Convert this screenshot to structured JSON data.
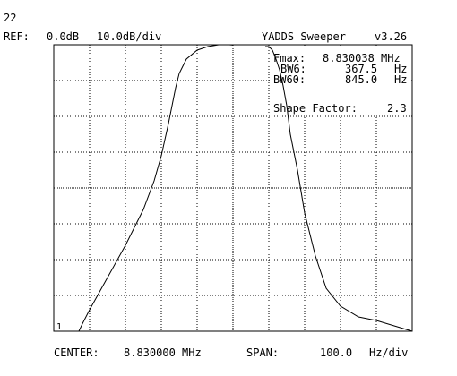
{
  "header": {
    "counter": "22",
    "ref_label": "REF:",
    "ref_value": "0.0dB",
    "scale": "10.0dB/div",
    "app_title": "YADDS Sweeper",
    "version": "v3.26"
  },
  "readout": {
    "fmax_label": "Fmax:",
    "fmax_value": "8.830038 MHz",
    "bw6_label": "BW6:",
    "bw6_value": "367.5",
    "bw6_unit": "Hz",
    "bw60_label": "BW60:",
    "bw60_value": "845.0",
    "bw60_unit": "Hz",
    "shape_label": "Shape Factor:",
    "shape_value": "2.3"
  },
  "marker_label": "1",
  "footer": {
    "center_label": "CENTER:",
    "center_value": "8.830000 MHz",
    "span_label": "SPAN:",
    "span_value": "100.0",
    "span_unit": "Hz/div"
  },
  "chart_data": {
    "type": "line",
    "title": "",
    "xlabel": "",
    "ylabel": "",
    "grid": true,
    "x_divisions": 10,
    "y_divisions": 8,
    "xlim": [
      8.8295,
      8.8305
    ],
    "ylim": [
      -80,
      0
    ],
    "x_unit": "MHz",
    "y_unit": "dB",
    "series": [
      {
        "values": [
          [
            8.8295,
            -80.0
          ],
          [
            8.82957,
            -80.0
          ],
          [
            8.82958,
            -77.9
          ],
          [
            8.8296,
            -74.0
          ],
          [
            8.82965,
            -65.0
          ],
          [
            8.8297,
            -56.0
          ],
          [
            8.82975,
            -46.0
          ],
          [
            8.82978,
            -38.0
          ],
          [
            8.8298,
            -31.0
          ],
          [
            8.82982,
            -22.0
          ],
          [
            8.82984,
            -12.0
          ],
          [
            8.82985,
            -8.0
          ],
          [
            8.82987,
            -4.0
          ],
          [
            8.8299,
            -1.5
          ],
          [
            8.82993,
            -0.5
          ],
          [
            8.82996,
            0.0
          ],
          [
            8.82999,
            0.0
          ],
          [
            8.83,
            -0.1
          ]
        ]
      },
      {
        "values": [
          [
            8.83009,
            -0.5
          ],
          [
            8.8301,
            -0.5
          ],
          [
            8.83011,
            -1.5
          ],
          [
            8.83012,
            -4.0
          ],
          [
            8.83013,
            -7.0
          ],
          [
            8.83014,
            -11.5
          ],
          [
            8.83015,
            -17.0
          ],
          [
            8.83016,
            -25.0
          ],
          [
            8.83018,
            -35.0
          ],
          [
            8.8302,
            -47.0
          ],
          [
            8.83023,
            -59.0
          ],
          [
            8.83026,
            -68.0
          ],
          [
            8.8303,
            -73.0
          ],
          [
            8.83035,
            -76.0
          ],
          [
            8.8304,
            -77.0
          ],
          [
            8.8305,
            -80.0
          ]
        ]
      }
    ]
  }
}
